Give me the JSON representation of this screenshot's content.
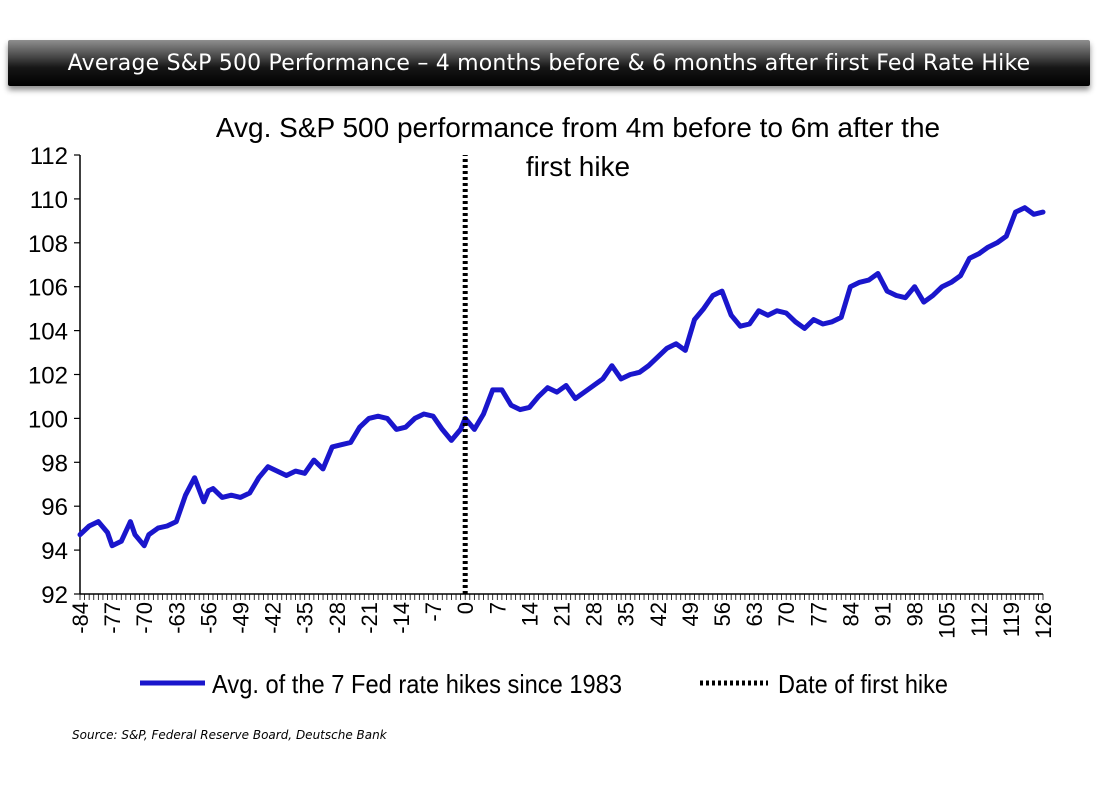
{
  "banner": {
    "title": "Average S&P 500 Performance – 4 months before & 6 months after  first Fed Rate Hike"
  },
  "source": "Source: S&P, Federal Reserve Board, Deutsche Bank",
  "colors": {
    "series": "#1a16cc",
    "hike_line": "#000000",
    "axis": "#000000"
  },
  "chart_data": {
    "type": "line",
    "title_lines": [
      "Avg. S&P 500 performance from 4m before to 6m after the",
      "first hike"
    ],
    "xlabel": "",
    "ylabel": "",
    "xlim": [
      -84,
      126
    ],
    "ylim": [
      92,
      112
    ],
    "y_ticks": [
      92,
      94,
      96,
      98,
      100,
      102,
      104,
      106,
      108,
      110,
      112
    ],
    "x_tick_labels": [
      "-84",
      "-77",
      "-70",
      "-63",
      "-56",
      "-49",
      "-42",
      "-35",
      "-28",
      "-21",
      "-14",
      "-7",
      "0",
      "7",
      "14",
      "21",
      "28",
      "35",
      "42",
      "49",
      "56",
      "63",
      "70",
      "77",
      "84",
      "91",
      "98",
      "105",
      "112",
      "119",
      "126"
    ],
    "grid": false,
    "legend": {
      "placement": "bottom"
    },
    "series": [
      {
        "name": "Avg. of the 7 Fed rate hikes since 1983",
        "style": "solid",
        "x": [
          -84,
          -82,
          -80,
          -78,
          -77,
          -75,
          -73,
          -72,
          -70,
          -69,
          -67,
          -65,
          -63,
          -61,
          -59,
          -57,
          -56,
          -55,
          -53,
          -51,
          -49,
          -47,
          -45,
          -43,
          -41,
          -39,
          -37,
          -35,
          -33,
          -31,
          -29,
          -27,
          -25,
          -23,
          -21,
          -19,
          -17,
          -15,
          -13,
          -11,
          -9,
          -7,
          -5,
          -3,
          -1,
          0,
          2,
          4,
          6,
          8,
          10,
          12,
          14,
          16,
          18,
          20,
          22,
          24,
          26,
          28,
          30,
          32,
          34,
          36,
          38,
          40,
          42,
          44,
          46,
          48,
          50,
          52,
          54,
          56,
          58,
          60,
          62,
          64,
          66,
          68,
          70,
          72,
          74,
          76,
          78,
          80,
          82,
          84,
          86,
          88,
          90,
          92,
          94,
          96,
          98,
          100,
          102,
          104,
          106,
          108,
          110,
          112,
          114,
          116,
          118,
          120,
          122,
          124,
          126
        ],
        "y": [
          94.7,
          95.1,
          95.3,
          94.8,
          94.2,
          94.4,
          95.3,
          94.7,
          94.2,
          94.7,
          95.0,
          95.1,
          95.3,
          96.5,
          97.3,
          96.2,
          96.7,
          96.8,
          96.4,
          96.5,
          96.4,
          96.6,
          97.3,
          97.8,
          97.6,
          97.4,
          97.6,
          97.5,
          98.1,
          97.7,
          98.7,
          98.8,
          98.9,
          99.6,
          100.0,
          100.1,
          100.0,
          99.5,
          99.6,
          100.0,
          100.2,
          100.1,
          99.5,
          99.0,
          99.5,
          100.0,
          99.5,
          100.2,
          101.3,
          101.3,
          100.6,
          100.4,
          100.5,
          101.0,
          101.4,
          101.2,
          101.5,
          100.9,
          101.2,
          101.5,
          101.8,
          102.4,
          101.8,
          102.0,
          102.1,
          102.4,
          102.8,
          103.2,
          103.4,
          103.1,
          104.5,
          105.0,
          105.6,
          105.8,
          104.7,
          104.2,
          104.3,
          104.9,
          104.7,
          104.9,
          104.8,
          104.4,
          104.1,
          104.5,
          104.3,
          104.4,
          104.6,
          106.0,
          106.2,
          106.3,
          106.6,
          105.8,
          105.6,
          105.5,
          106.0,
          105.3,
          105.6,
          106.0,
          106.2,
          106.5,
          107.3,
          107.5,
          107.8,
          108.0,
          108.3,
          109.4,
          109.6,
          109.3,
          109.4
        ]
      },
      {
        "name": "Date of first hike",
        "style": "dotted",
        "x": [
          0,
          0
        ],
        "y": [
          92,
          112
        ]
      }
    ]
  }
}
